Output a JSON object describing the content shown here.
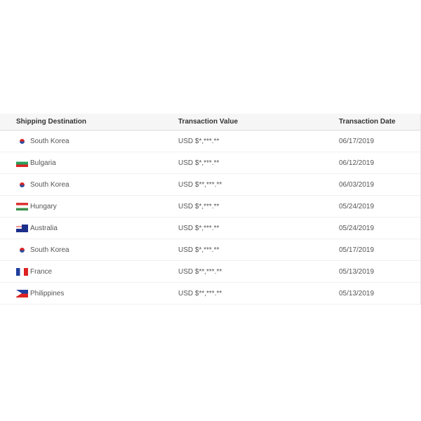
{
  "table": {
    "headers": [
      "Shipping Destination",
      "Transaction Value",
      "Transaction Date"
    ],
    "rows": [
      {
        "country": "South Korea",
        "flag": "kr",
        "value": "USD $*,***.**",
        "date": "06/17/2019"
      },
      {
        "country": "Bulgaria",
        "flag": "bg",
        "value": "USD $*,***.**",
        "date": "06/12/2019"
      },
      {
        "country": "South Korea",
        "flag": "kr",
        "value": "USD $**,***.**",
        "date": "06/03/2019"
      },
      {
        "country": "Hungary",
        "flag": "hu",
        "value": "USD $*,***.**",
        "date": "05/24/2019"
      },
      {
        "country": "Australia",
        "flag": "au",
        "value": "USD $*,***.**",
        "date": "05/24/2019"
      },
      {
        "country": "South Korea",
        "flag": "kr",
        "value": "USD $*,***.**",
        "date": "05/17/2019"
      },
      {
        "country": "France",
        "flag": "fr",
        "value": "USD $**,***.**",
        "date": "05/13/2019"
      },
      {
        "country": "Philippines",
        "flag": "ph",
        "value": "USD $**,***.**",
        "date": "05/13/2019"
      }
    ]
  }
}
